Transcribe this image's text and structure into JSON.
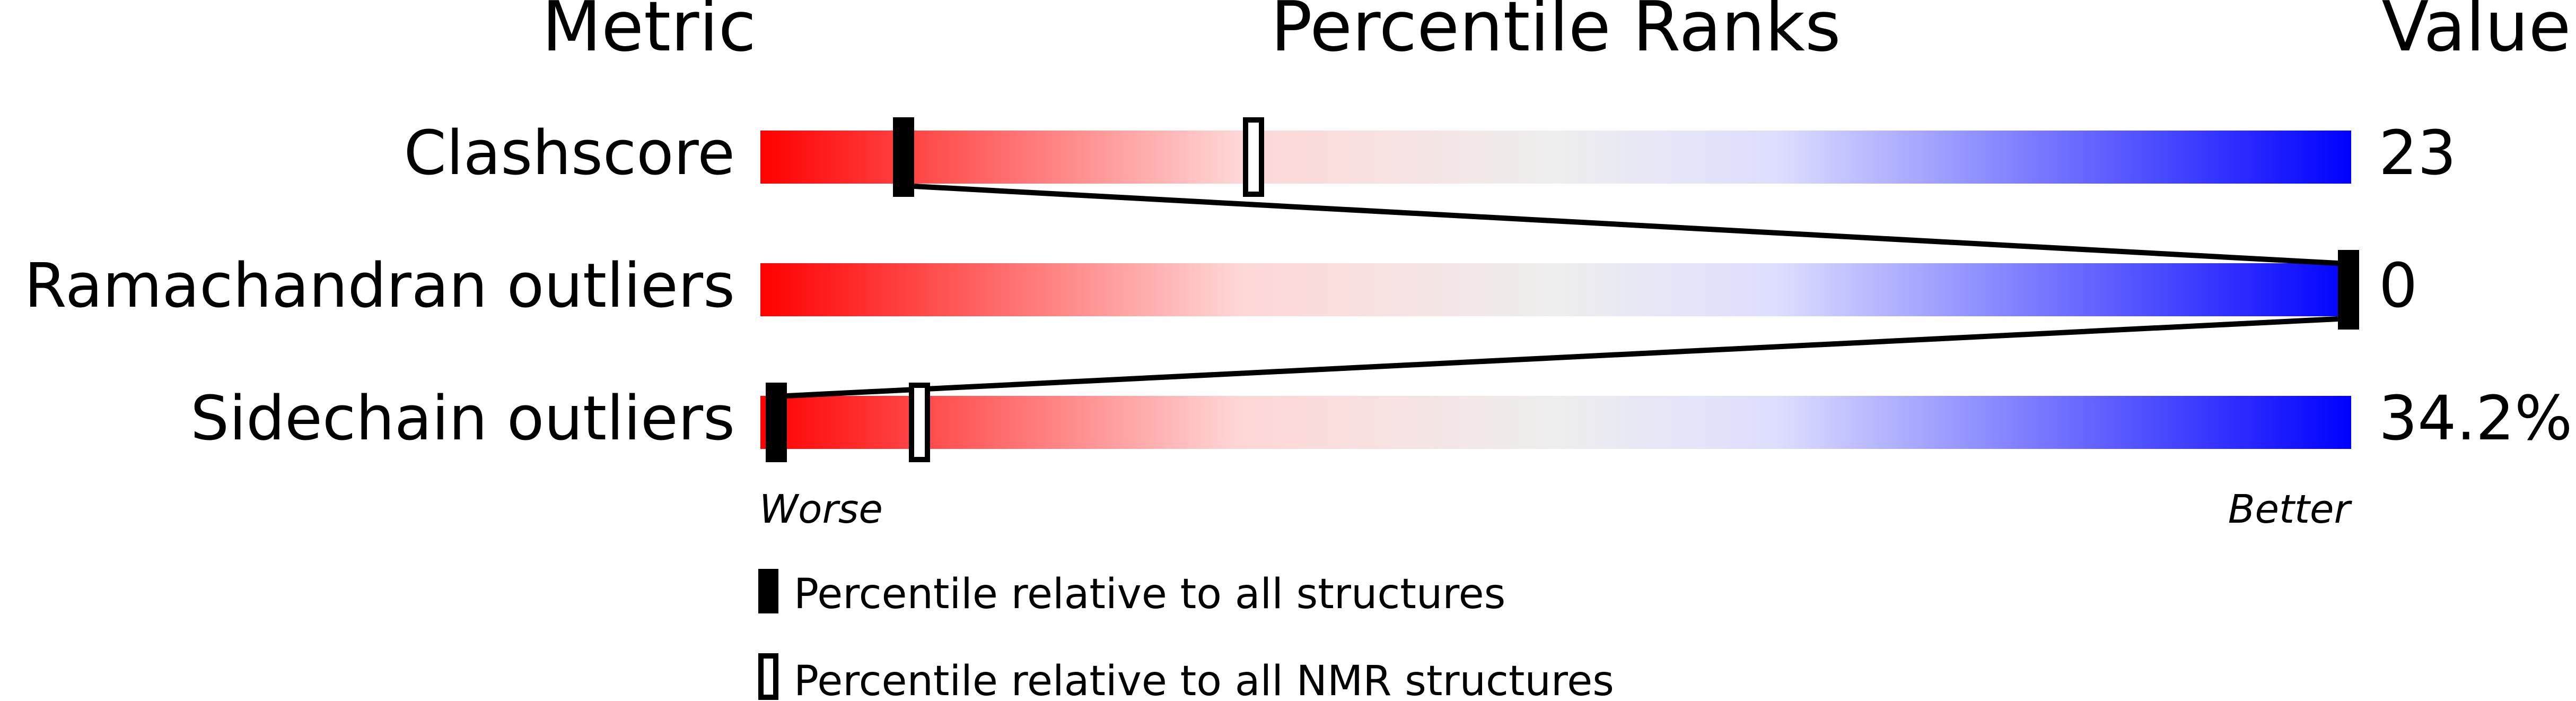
{
  "chart_data": {
    "type": "percentile-slider",
    "headers": {
      "metric": "Metric",
      "ranks": "Percentile Ranks",
      "value": "Value"
    },
    "xlim": [
      0,
      100
    ],
    "metrics": [
      {
        "label": "Clashscore",
        "value": "23",
        "percentile_all": 9,
        "percentile_nmr": 31
      },
      {
        "label": "Ramachandran outliers",
        "value": "0",
        "percentile_all": 100,
        "percentile_nmr": null
      },
      {
        "label": "Sidechain outliers",
        "value": "34.2%",
        "percentile_all": 1,
        "percentile_nmr": 10
      }
    ],
    "axis_labels": {
      "left": "Worse",
      "right": "Better"
    },
    "legend": [
      {
        "marker": "filled",
        "label": "Percentile relative to all structures"
      },
      {
        "marker": "open",
        "label": "Percentile relative to all NMR structures"
      }
    ],
    "colors": {
      "worse": "#ff0000",
      "mid": "#eeeeee",
      "better": "#0000ff",
      "marker": "#000000"
    }
  }
}
